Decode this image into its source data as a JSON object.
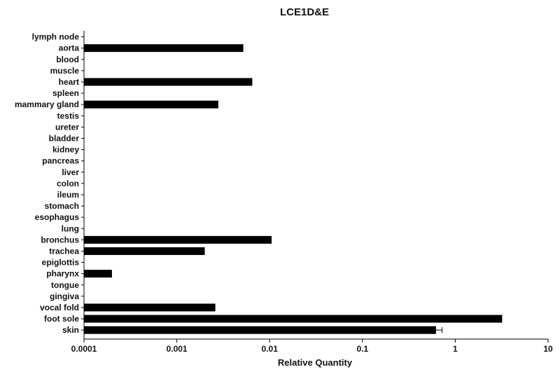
{
  "chart_data": {
    "type": "bar",
    "orientation": "horizontal",
    "title": "LCE1D&E",
    "xlabel": "Relative Quantity",
    "ylabel": "",
    "x_scale": "log",
    "xlim": [
      0.0001,
      10
    ],
    "x_ticks": [
      0.0001,
      0.001,
      0.01,
      0.1,
      1,
      10
    ],
    "x_tick_labels": [
      "0.0001",
      "0.001",
      "0.01",
      "0.1",
      "1",
      "10"
    ],
    "grid": false,
    "legend": "none",
    "bar_color": "#000000",
    "categories": [
      "lymph node",
      "aorta",
      "blood",
      "muscle",
      "heart",
      "spleen",
      "mammary gland",
      "testis",
      "ureter",
      "bladder",
      "kidney",
      "pancreas",
      "liver",
      "colon",
      "ileum",
      "stomach",
      "esophagus",
      "lung",
      "bronchus",
      "trachea",
      "epiglottis",
      "pharynx",
      "tongue",
      "gingiva",
      "vocal fold",
      "foot sole",
      "skin"
    ],
    "values": [
      null,
      0.0052,
      null,
      null,
      0.0065,
      null,
      0.0028,
      null,
      null,
      null,
      null,
      null,
      null,
      null,
      null,
      null,
      null,
      null,
      0.0105,
      0.002,
      null,
      0.0002,
      null,
      null,
      0.0026,
      3.2,
      0.62
    ],
    "error_bars": [
      null,
      null,
      null,
      null,
      null,
      null,
      null,
      null,
      null,
      null,
      null,
      null,
      null,
      null,
      null,
      null,
      null,
      null,
      null,
      null,
      null,
      null,
      null,
      null,
      null,
      null,
      0.1
    ]
  }
}
